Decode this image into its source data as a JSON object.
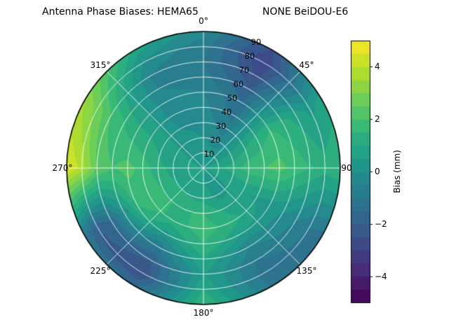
{
  "title": {
    "left": "Antenna Phase Biases: HEMA65",
    "right": "NONE BeiDOU-E6"
  },
  "chart_data": {
    "type": "heatmap",
    "projection": "polar",
    "title": "Antenna Phase Biases: HEMA65    NONE BeiDOU-E6",
    "colormap": "viridis",
    "colormap_stops": [
      "#440154",
      "#482878",
      "#3e4a89",
      "#31688e",
      "#26828e",
      "#1f9e89",
      "#35b779",
      "#6ece58",
      "#b5de2b",
      "#fde725"
    ],
    "clim": [
      -5,
      5
    ],
    "band_step": 0.5,
    "angular_tick_labels": [
      "0°",
      "45°",
      "90",
      "135°",
      "180°",
      "225°",
      "270°",
      "315°"
    ],
    "radial_ticks": [
      10,
      20,
      30,
      40,
      50,
      60,
      70,
      80,
      90
    ],
    "colorbar": {
      "label": "Bias (mm)",
      "ticks": [
        {
          "value": 4,
          "label": "4"
        },
        {
          "value": 2,
          "label": "2"
        },
        {
          "value": 0,
          "label": "0"
        },
        {
          "value": -2,
          "label": "−2"
        },
        {
          "value": -4,
          "label": "−4"
        }
      ]
    },
    "azimuth_deg": [
      0,
      30,
      60,
      90,
      120,
      150,
      180,
      210,
      240,
      270,
      300,
      330
    ],
    "zenith_deg": [
      0,
      10,
      20,
      30,
      40,
      50,
      60,
      70,
      80,
      90
    ],
    "values": [
      [
        0.5,
        0.5,
        0.5,
        0.5,
        0.5,
        0.5,
        0.5,
        0.5,
        0.5,
        0.5,
        0.5,
        0.5
      ],
      [
        0.3,
        0.2,
        0.4,
        0.8,
        0.5,
        0.4,
        0.5,
        0.6,
        0.7,
        0.6,
        0.5,
        0.4
      ],
      [
        0.0,
        -0.3,
        0.5,
        1.3,
        0.6,
        0.3,
        0.8,
        1.0,
        1.0,
        0.8,
        0.6,
        0.2
      ],
      [
        -0.2,
        -0.8,
        0.8,
        1.8,
        0.6,
        0.8,
        1.5,
        1.5,
        1.5,
        1.2,
        0.8,
        0.0
      ],
      [
        -0.3,
        -1.2,
        1.2,
        2.0,
        0.4,
        1.2,
        1.8,
        1.2,
        2.0,
        1.8,
        1.0,
        -0.2
      ],
      [
        -0.5,
        -1.5,
        1.5,
        2.2,
        0.2,
        0.5,
        1.5,
        0.3,
        1.5,
        2.2,
        1.2,
        -0.3
      ],
      [
        -0.8,
        -2.0,
        1.2,
        1.8,
        0.0,
        -0.5,
        1.0,
        -1.0,
        0.0,
        2.0,
        1.5,
        -0.5
      ],
      [
        -1.0,
        -2.6,
        0.8,
        1.5,
        -0.5,
        -1.0,
        0.5,
        -2.0,
        -1.5,
        2.5,
        2.0,
        -0.5
      ],
      [
        -0.8,
        -3.0,
        0.3,
        1.2,
        -1.0,
        -1.3,
        1.0,
        -2.5,
        -2.0,
        3.8,
        2.8,
        0.0
      ],
      [
        -0.3,
        -2.5,
        0.8,
        1.5,
        -1.2,
        -1.0,
        1.5,
        -1.5,
        -1.0,
        4.6,
        3.5,
        0.8
      ]
    ]
  }
}
